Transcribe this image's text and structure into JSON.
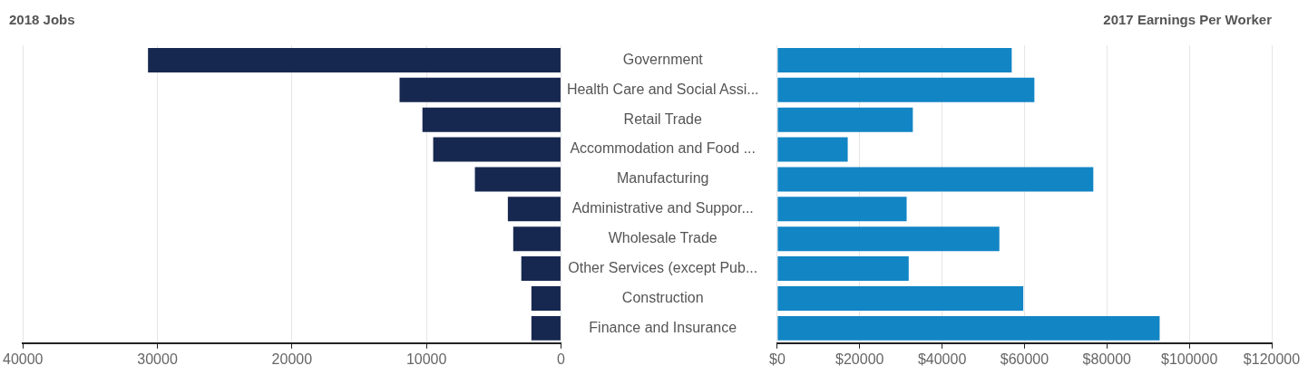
{
  "chart_data": [
    {
      "type": "bar",
      "title": "2018 Jobs",
      "orientation": "horizontal",
      "categories": [
        "Government",
        "Health Care and Social Assi...",
        "Retail Trade",
        "Accommodation and Food ...",
        "Manufacturing",
        "Administrative and Suppor...",
        "Wholesale Trade",
        "Other Services (except Pub...",
        "Construction",
        "Finance and Insurance"
      ],
      "values": [
        30700,
        12000,
        10300,
        9500,
        6400,
        3950,
        3550,
        2950,
        2200,
        2200
      ],
      "color": "#172850",
      "xlim": [
        40000,
        0
      ],
      "xticks": [
        40000,
        30000,
        20000,
        10000,
        0
      ],
      "grid": "x"
    },
    {
      "type": "bar",
      "title": "2017 Earnings Per Worker",
      "orientation": "horizontal",
      "categories": [
        null,
        null,
        null,
        null,
        null,
        null,
        null,
        null,
        null,
        null
      ],
      "values": [
        56900,
        62400,
        32900,
        17100,
        76700,
        31400,
        53900,
        31900,
        59700,
        92800
      ],
      "color": "#1285c5",
      "xlim": [
        0,
        120000
      ],
      "xticks": [
        {
          "value": 0,
          "label": "$0"
        },
        {
          "value": 20000,
          "label": "$20000"
        },
        {
          "value": 40000,
          "label": "$40000"
        },
        {
          "value": 60000,
          "label": "$60000"
        },
        {
          "value": 80000,
          "label": "$80000"
        },
        {
          "value": 100000,
          "label": "$100000"
        },
        {
          "value": 120000,
          "label": "$120000"
        }
      ],
      "grid": "x",
      "tick_labels": "x"
    }
  ]
}
